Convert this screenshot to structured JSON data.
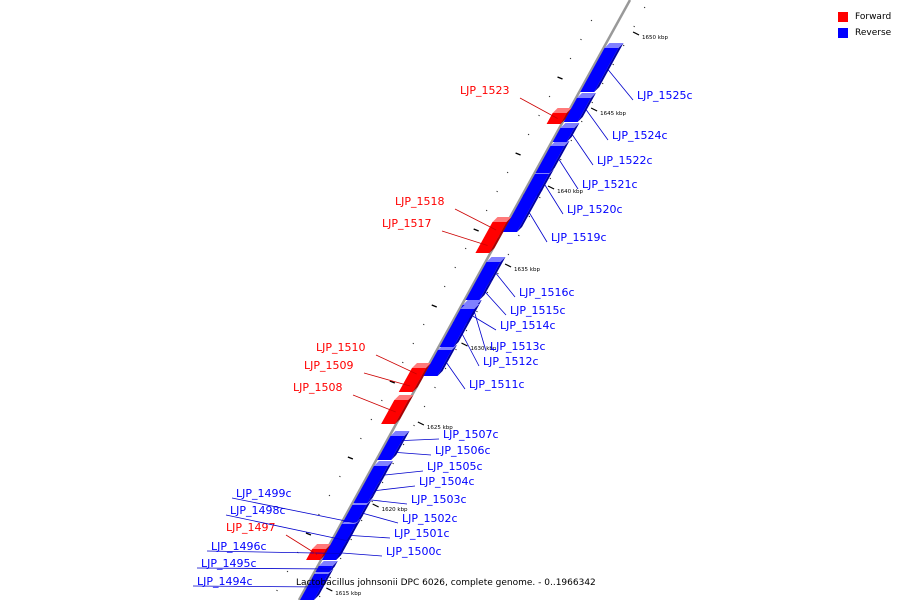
{
  "legend": {
    "forward": {
      "label": "Forward",
      "color": "#ff0000"
    },
    "reverse": {
      "label": "Reverse",
      "color": "#0000ff"
    }
  },
  "caption": "Lactobacillus johnsonii DPC 6026, complete genome. - 0..1966342",
  "colors": {
    "forward": "#ff0000",
    "forward_top": "#ff7a7a",
    "forward_side": "#aa0000",
    "reverse": "#0000ff",
    "reverse_top": "#8080ff",
    "reverse_side": "#0000a0",
    "axis": "#999999",
    "leader_forward": "#cc0000",
    "leader_reverse": "#0000cc"
  },
  "kbp_ticks": [
    "1615 kbp",
    "1620 kbp",
    "1625 kbp",
    "1630 kbp",
    "1635 kbp",
    "1640 kbp",
    "1645 kbp",
    "1650 kbp"
  ],
  "genes": [
    {
      "name": "LJP_1494c",
      "strand": "reverse"
    },
    {
      "name": "LJP_1495c",
      "strand": "reverse"
    },
    {
      "name": "LJP_1496c",
      "strand": "reverse"
    },
    {
      "name": "LJP_1497",
      "strand": "forward"
    },
    {
      "name": "LJP_1498c",
      "strand": "reverse"
    },
    {
      "name": "LJP_1499c",
      "strand": "reverse"
    },
    {
      "name": "LJP_1500c",
      "strand": "reverse"
    },
    {
      "name": "LJP_1501c",
      "strand": "reverse"
    },
    {
      "name": "LJP_1502c",
      "strand": "reverse"
    },
    {
      "name": "LJP_1503c",
      "strand": "reverse"
    },
    {
      "name": "LJP_1504c",
      "strand": "reverse"
    },
    {
      "name": "LJP_1505c",
      "strand": "reverse"
    },
    {
      "name": "LJP_1506c",
      "strand": "reverse"
    },
    {
      "name": "LJP_1507c",
      "strand": "reverse"
    },
    {
      "name": "LJP_1508",
      "strand": "forward"
    },
    {
      "name": "LJP_1509",
      "strand": "forward"
    },
    {
      "name": "LJP_1510",
      "strand": "forward"
    },
    {
      "name": "LJP_1511c",
      "strand": "reverse"
    },
    {
      "name": "LJP_1512c",
      "strand": "reverse"
    },
    {
      "name": "LJP_1513c",
      "strand": "reverse"
    },
    {
      "name": "LJP_1514c",
      "strand": "reverse"
    },
    {
      "name": "LJP_1515c",
      "strand": "reverse"
    },
    {
      "name": "LJP_1516c",
      "strand": "reverse"
    },
    {
      "name": "LJP_1517",
      "strand": "forward"
    },
    {
      "name": "LJP_1518",
      "strand": "forward"
    },
    {
      "name": "LJP_1519c",
      "strand": "reverse"
    },
    {
      "name": "LJP_1520c",
      "strand": "reverse"
    },
    {
      "name": "LJP_1521c",
      "strand": "reverse"
    },
    {
      "name": "LJP_1522c",
      "strand": "reverse"
    },
    {
      "name": "LJP_1523",
      "strand": "forward"
    },
    {
      "name": "LJP_1524c",
      "strand": "reverse"
    },
    {
      "name": "LJP_1525c",
      "strand": "reverse"
    }
  ]
}
